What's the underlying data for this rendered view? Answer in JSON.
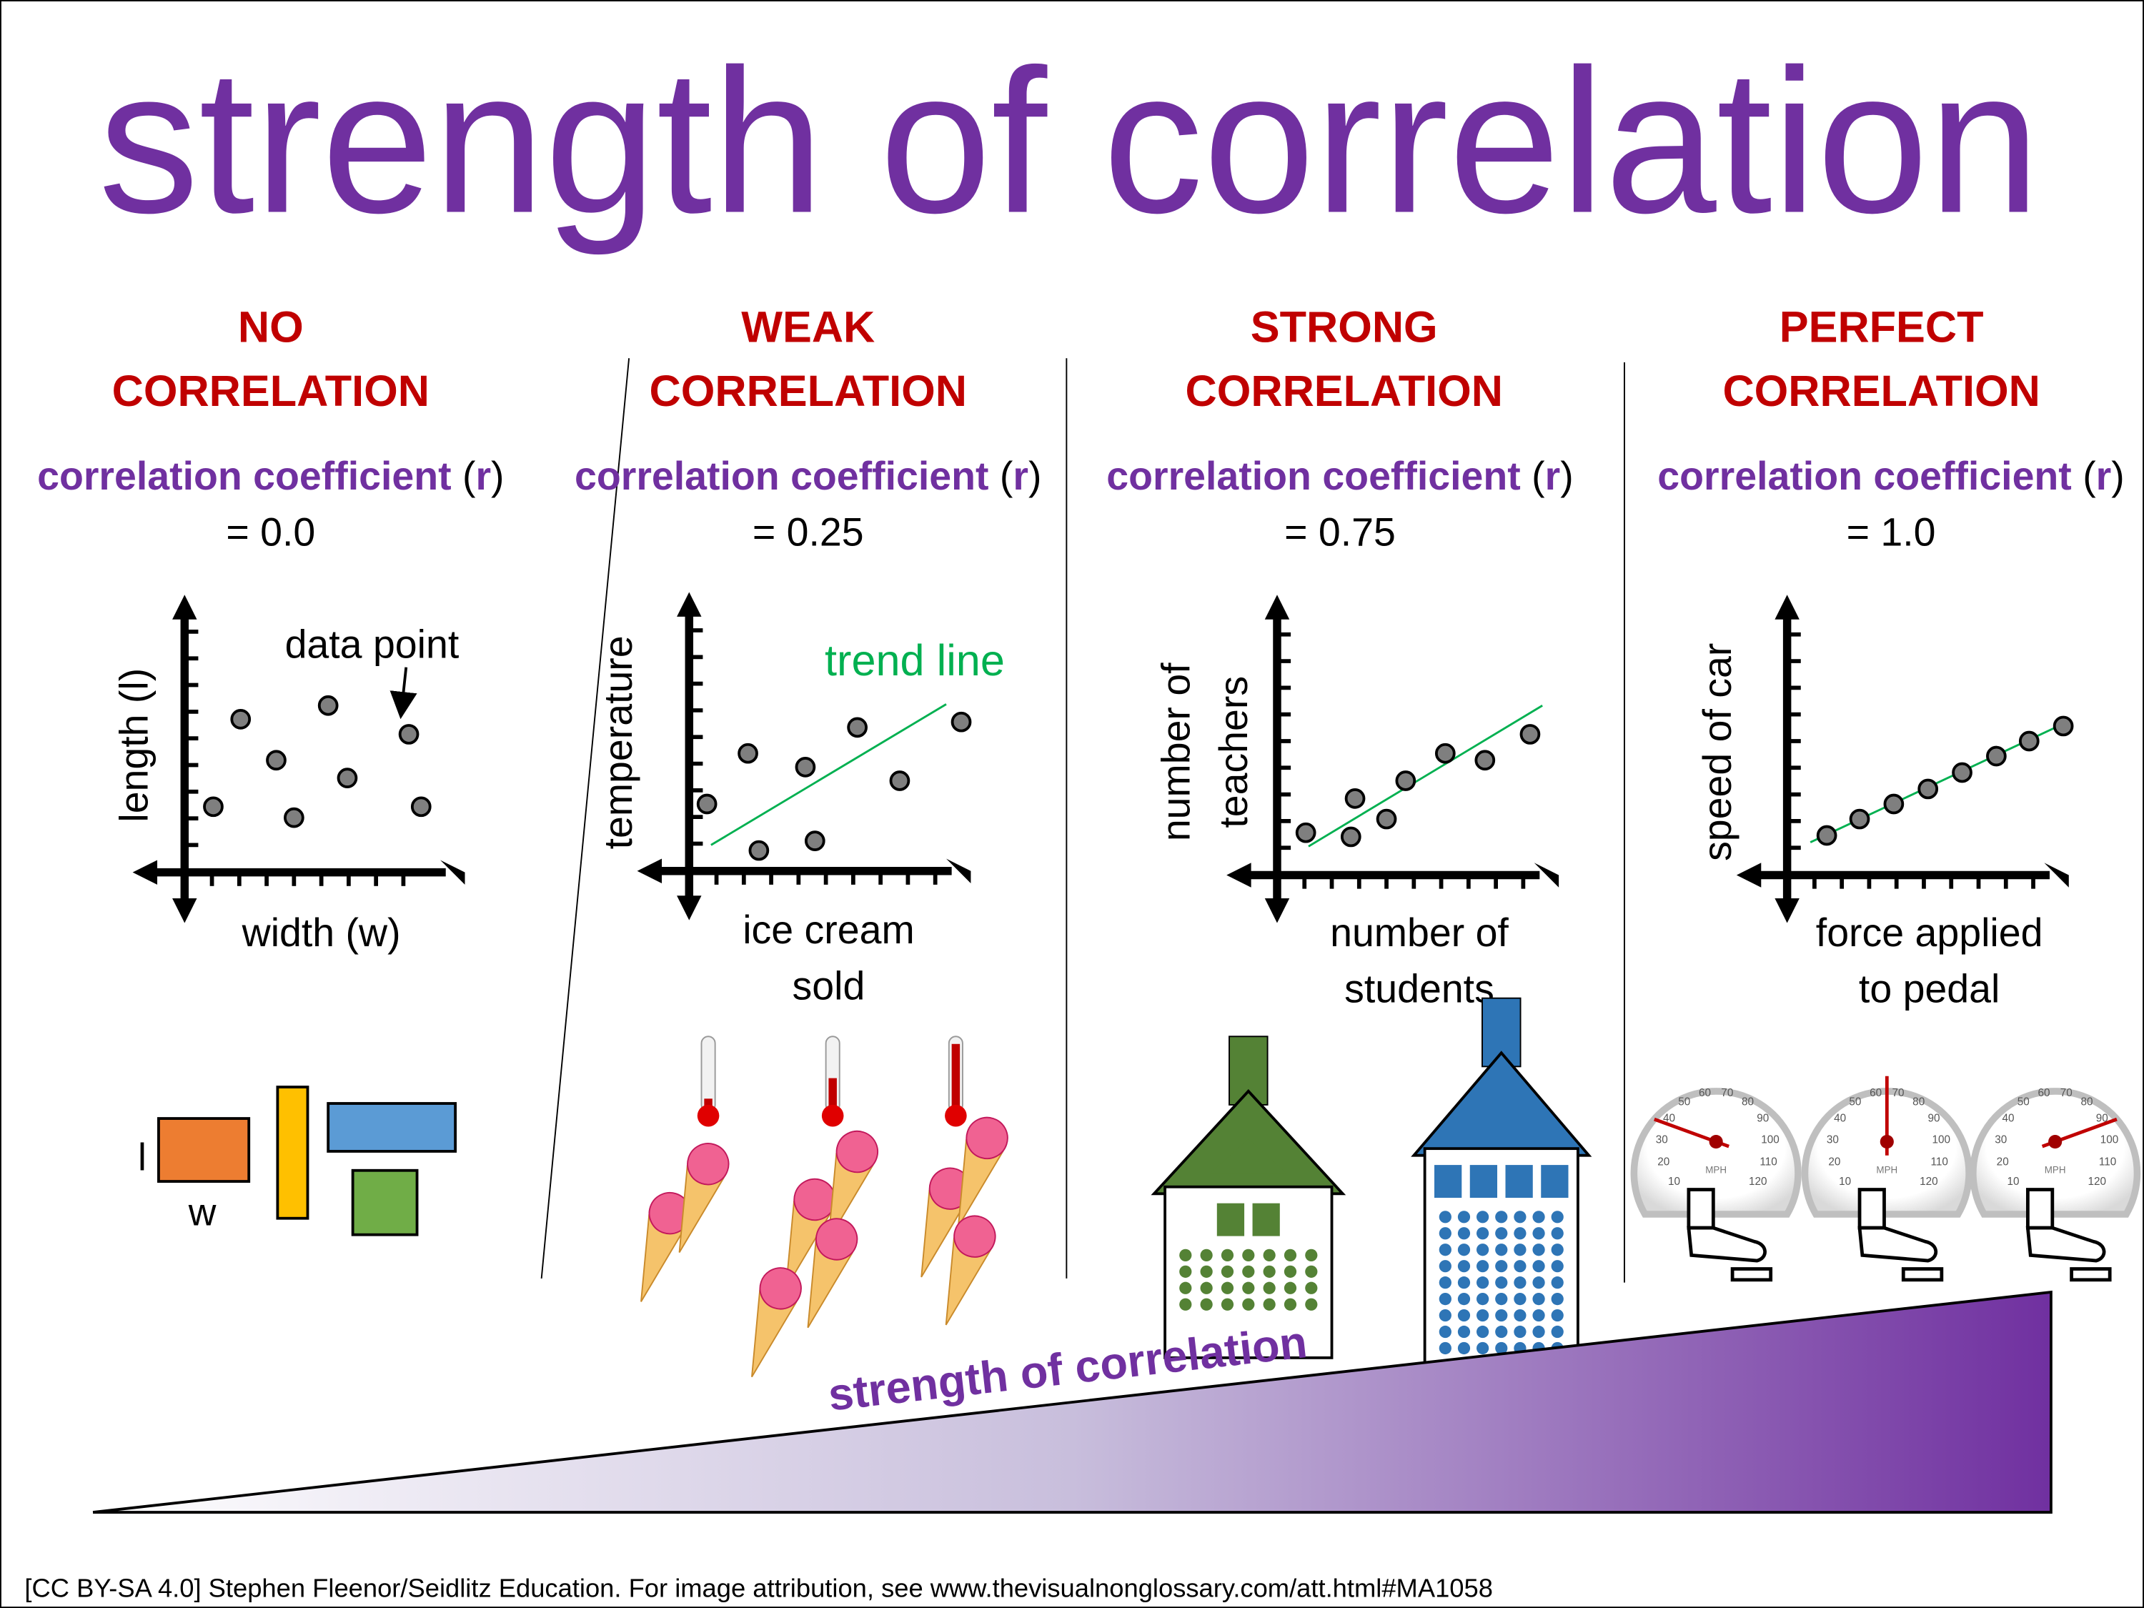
{
  "title": "strength of correlation",
  "colors": {
    "title": "#7030a0",
    "heading": "#c00000",
    "trend": "#00b050",
    "point": "#7f7f7f"
  },
  "panels": [
    {
      "heading1": "NO",
      "heading2": "CORRELATION",
      "coef_label": "correlation coefficient ",
      "r": "r",
      "value": "= 0.0",
      "ylabel": [
        "length (l)"
      ],
      "xlabel": [
        "width (w)"
      ],
      "annotation": "data point"
    },
    {
      "heading1": "WEAK",
      "heading2": "CORRELATION",
      "coef_label": "correlation coefficient ",
      "r": "r",
      "value": "= 0.25",
      "ylabel": [
        "temperature"
      ],
      "xlabel": [
        "ice cream",
        "sold"
      ],
      "annotation": "trend line"
    },
    {
      "heading1": "STRONG",
      "heading2": "CORRELATION",
      "coef_label": "correlation coefficient ",
      "r": "r",
      "value": "= 0.75",
      "ylabel": [
        "number of",
        "teachers"
      ],
      "xlabel": [
        "number of",
        "students"
      ]
    },
    {
      "heading1": "PERFECT",
      "heading2": "CORRELATION",
      "coef_label": "correlation coefficient ",
      "r": "r",
      "value": "= 1.0",
      "ylabel": [
        "speed of car"
      ],
      "xlabel": [
        "force applied",
        "to pedal"
      ]
    }
  ],
  "shapes_labels": {
    "l": "l",
    "w": "w"
  },
  "speedometer": {
    "unit": "MPH",
    "ticks": [
      "10",
      "20",
      "30",
      "40",
      "50",
      "60",
      "70",
      "80",
      "90",
      "100",
      "110",
      "120"
    ]
  },
  "wedge_label": "strength of correlation",
  "footer": "[CC BY-SA 4.0] Stephen Fleenor/Seidlitz Education.  For image attribution, see www.thevisualnonglossary.com/att.html#MA1058"
}
